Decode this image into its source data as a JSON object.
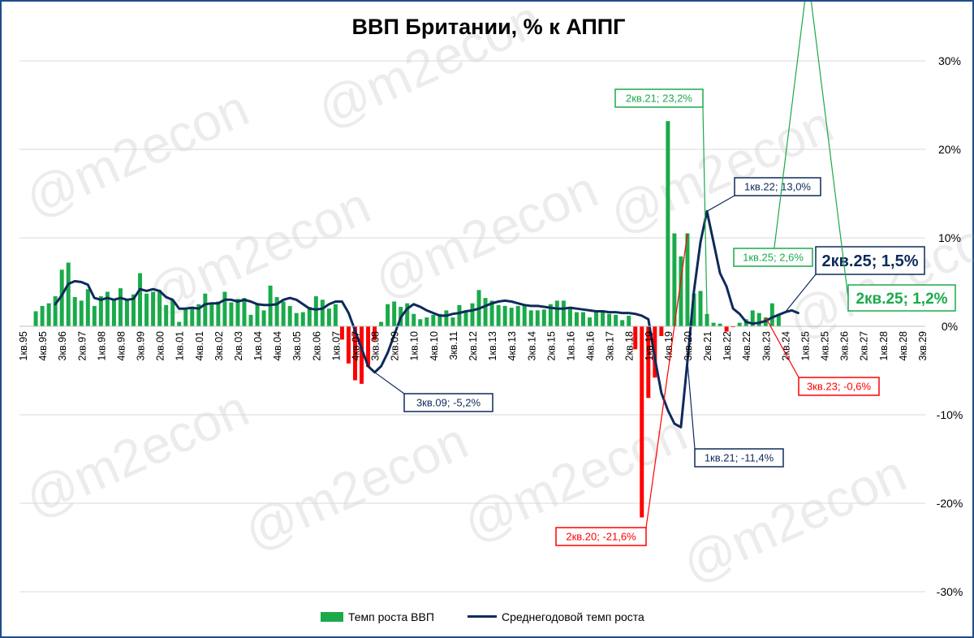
{
  "watermark": "@m2econ",
  "legend": {
    "bars_label": "Темп роста ВВП",
    "line_label": "Среднегодовой темп роста"
  },
  "colors": {
    "positive": "#1aaa4a",
    "negative": "#ff0000",
    "line": "#0e2a5c",
    "frame": "#1f4e8c",
    "grid": "#d9d9d9"
  },
  "chart_data": {
    "type": "bar",
    "title": "ВВП Британии, % к АППГ",
    "xlabel": "",
    "ylabel": "",
    "ylim": [
      -30,
      30
    ],
    "y_ticks": [
      30,
      20,
      10,
      0,
      -10,
      -20,
      -30
    ],
    "y_tick_labels": [
      "30%",
      "20%",
      "10%",
      "0%",
      "-10%",
      "-20%",
      "-30%"
    ],
    "grid": true,
    "legend_position": "bottom",
    "x_range": [
      "1кв.95",
      "3кв.29"
    ],
    "x_tick_labels": [
      "1кв.95",
      "4кв.95",
      "3кв.96",
      "2кв.97",
      "1кв.98",
      "4кв.98",
      "3кв.99",
      "2кв.00",
      "1кв.01",
      "4кв.01",
      "3кв.02",
      "2кв.03",
      "1кв.04",
      "4кв.04",
      "3кв.05",
      "2кв.06",
      "1кв.07",
      "4кв.07",
      "3кв.08",
      "2кв.09",
      "1кв.10",
      "4кв.10",
      "3кв.11",
      "2кв.12",
      "1кв.13",
      "4кв.13",
      "3кв.14",
      "2кв.15",
      "1кв.16",
      "4кв.16",
      "3кв.17",
      "2кв.18",
      "1кв.19",
      "4кв.19",
      "3кв.20",
      "2кв.21",
      "1кв.22",
      "4кв.22",
      "3кв.23",
      "2кв.24",
      "1кв.25",
      "4кв.25",
      "3кв.26",
      "2кв.27",
      "1кв.28",
      "4кв.28",
      "3кв.29"
    ],
    "series": [
      {
        "name": "Темп роста ВВП",
        "type": "bar",
        "start": "3кв.95",
        "values": [
          1.7,
          2.3,
          2.6,
          3.4,
          6.4,
          7.2,
          3.3,
          2.9,
          4.2,
          2.3,
          3.4,
          3.9,
          3.0,
          4.3,
          3.0,
          3.6,
          6.0,
          3.7,
          3.9,
          4.1,
          2.4,
          3.0,
          0.5,
          2.0,
          2.1,
          2.5,
          3.7,
          2.6,
          2.8,
          3.9,
          2.7,
          3.1,
          3.2,
          1.3,
          2.6,
          1.8,
          4.6,
          3.3,
          2.8,
          2.3,
          1.5,
          1.6,
          2.2,
          3.4,
          3.0,
          2.0,
          2.5,
          -1.5,
          -4.2,
          -6.1,
          -6.5,
          -4.6,
          -1.6,
          0.5,
          2.5,
          2.8,
          2.2,
          2.6,
          1.4,
          0.8,
          1.0,
          1.3,
          1.4,
          1.8,
          1.0,
          2.4,
          1.7,
          2.6,
          4.1,
          3.2,
          2.9,
          2.4,
          2.3,
          2.1,
          2.3,
          2.5,
          1.8,
          1.8,
          1.9,
          2.5,
          2.9,
          2.9,
          2.1,
          1.6,
          1.6,
          1.0,
          1.8,
          1.6,
          1.4,
          1.3,
          0.7,
          1.2,
          -2.6,
          -21.6,
          -8.1,
          -5.8,
          -1.1,
          23.2,
          10.5,
          7.9,
          10.5,
          3.7,
          4.0,
          1.4,
          0.4,
          0.3,
          -0.6,
          -0.1,
          0.4,
          0.8,
          1.8,
          1.5,
          1.0,
          2.6,
          1.2
        ],
        "color": "#1aaa4a",
        "negative_color": "#ff0000"
      },
      {
        "name": "Среднегодовой темп роста",
        "type": "line",
        "start": "2кв.96",
        "values": [
          2.5,
          3.5,
          4.8,
          5.1,
          5.0,
          4.7,
          3.2,
          3.0,
          3.2,
          3.0,
          3.2,
          3.0,
          3.1,
          4.2,
          4.0,
          4.2,
          4.0,
          3.3,
          3.0,
          2.0,
          2.0,
          2.1,
          2.0,
          2.5,
          2.6,
          2.6,
          3.0,
          3.0,
          2.8,
          3.0,
          2.8,
          2.5,
          2.4,
          2.4,
          2.5,
          3.0,
          3.2,
          3.0,
          2.5,
          2.0,
          1.9,
          2.0,
          2.5,
          2.8,
          2.8,
          1.5,
          -0.5,
          -2.5,
          -4.5,
          -5.2,
          -4.5,
          -3.0,
          -1.0,
          1.0,
          2.0,
          2.5,
          2.2,
          1.8,
          1.5,
          1.2,
          1.2,
          1.4,
          1.5,
          1.7,
          1.8,
          2.0,
          2.3,
          2.6,
          2.8,
          2.9,
          2.8,
          2.6,
          2.4,
          2.3,
          2.3,
          2.2,
          2.1,
          2.0,
          2.0,
          2.1,
          2.0,
          1.9,
          1.8,
          1.7,
          1.7,
          1.6,
          1.6,
          1.5,
          1.5,
          1.4,
          1.2,
          0.8,
          -3.6,
          -7.5,
          -9.5,
          -11.0,
          -11.4,
          -4.0,
          4.0,
          9.5,
          13.0,
          9.5,
          6.0,
          4.5,
          2.0,
          1.4,
          0.5,
          0.3,
          0.4,
          0.6,
          1.0,
          1.3,
          1.6,
          1.8,
          1.5
        ]
      }
    ],
    "annotations": [
      {
        "text": "2кв.21; 23,2%",
        "series": 0,
        "index": 103,
        "style": "green"
      },
      {
        "text": "1кв.22; 13,0%",
        "series": 1,
        "index": 100,
        "style": "navy"
      },
      {
        "text": "1кв.25; 2,6%",
        "series": 0,
        "index": 118,
        "style": "green"
      },
      {
        "text": "2кв.25; 1,5%",
        "series": 1,
        "index": 112,
        "style": "navy-large"
      },
      {
        "text": "2кв.25; 1,2%",
        "series": 0,
        "index": 119,
        "style": "green-large"
      },
      {
        "text": "3кв.09; -5,2%",
        "series": 1,
        "index": 49,
        "style": "navy"
      },
      {
        "text": "3кв.23; -0,6%",
        "series": 0,
        "index": 112,
        "style": "red"
      },
      {
        "text": "1кв.21; -11,4%",
        "series": 1,
        "index": 97,
        "style": "navy"
      },
      {
        "text": "2кв.20; -21,6%",
        "series": 0,
        "index": 100,
        "style": "red"
      }
    ]
  }
}
